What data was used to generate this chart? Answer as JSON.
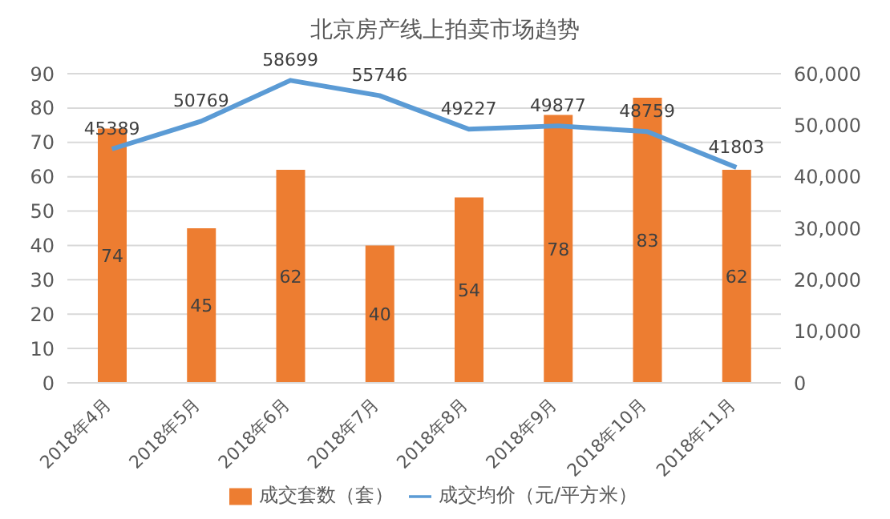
{
  "chart_data": {
    "type": "bar",
    "title": "北京房产线上拍卖市场趋势",
    "categories": [
      "2018年4月",
      "2018年5月",
      "2018年6月",
      "2018年7月",
      "2018年8月",
      "2018年9月",
      "2018年10月",
      "2018年11月"
    ],
    "series": [
      {
        "name": "成交套数（套）",
        "color": "#ed7d31",
        "values": [
          74,
          45,
          62,
          40,
          54,
          78,
          83,
          62
        ]
      },
      {
        "name": "成交均价（元/平方米）",
        "type": "line",
        "axis": "y2",
        "color": "#5b9bd5",
        "values": [
          45389,
          50769,
          58699,
          55746,
          49227,
          49877,
          48759,
          41803
        ]
      }
    ],
    "ylim": [
      0,
      90
    ],
    "yticks": [
      0,
      10,
      20,
      30,
      40,
      50,
      60,
      70,
      80,
      90
    ],
    "y2lim": [
      0,
      60000
    ],
    "y2ticks": [
      0,
      {
        "value": 10000,
        "label": "10,000"
      },
      {
        "value": 20000,
        "label": "20,000"
      },
      {
        "value": 30000,
        "label": "30,000"
      },
      {
        "value": 40000,
        "label": "40,000"
      },
      {
        "value": 50000,
        "label": "50,000"
      },
      {
        "value": 60000,
        "label": "60,000"
      }
    ],
    "grid": "y",
    "legend": "bottom",
    "data_labels": true,
    "marker": "none"
  }
}
